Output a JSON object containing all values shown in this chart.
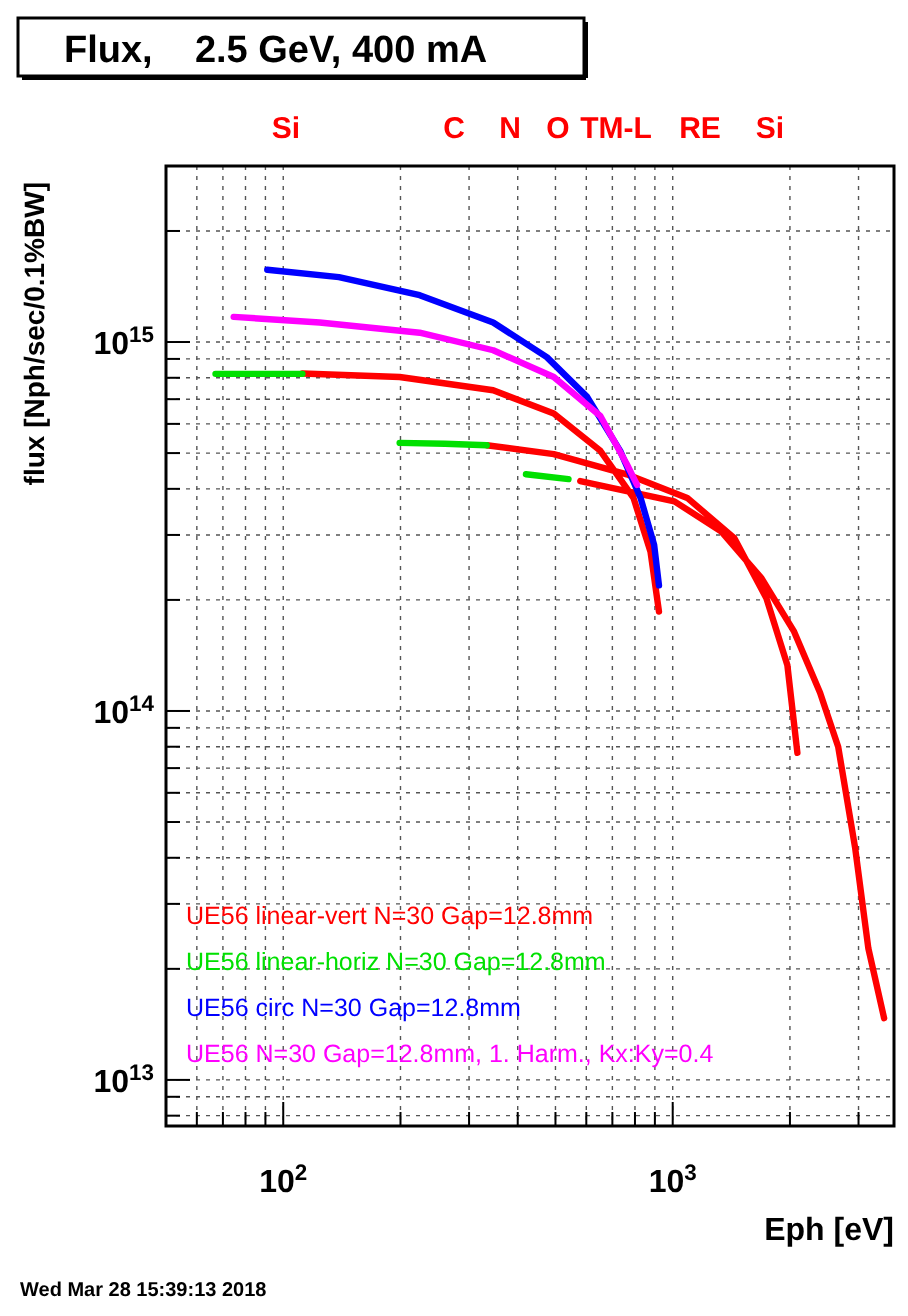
{
  "chart_data": {
    "type": "line",
    "title": "Flux,    2.5 GeV, 400 mA",
    "xlabel": "Eph [eV]",
    "ylabel": "flux [Nph/sec/0.1%BW]",
    "log": "xy",
    "xlim": [
      50,
      3700
    ],
    "ylim": [
      7500000000000.0,
      3000000000000000.0
    ],
    "xticks": [
      {
        "value": 100,
        "label": "10$^{2}$"
      },
      {
        "value": 1000,
        "label": "10$^{3}$"
      }
    ],
    "yticks": [
      {
        "value": 10000000000000.0,
        "label": "10$^{13}$"
      },
      {
        "value": 100000000000000.0,
        "label": "10$^{14}$"
      },
      {
        "value": 1000000000000000.0,
        "label": "10$^{15}$"
      }
    ],
    "grid": true,
    "legend": "bottom left",
    "marker": "none",
    "line_style": "solid",
    "annotations": [
      "Si",
      "C",
      "N",
      "O",
      "TM-L",
      "RE",
      "Si",
      "Wed Mar 28 15:39:13 2018"
    ],
    "series": [
      {
        "name": "UE56 linear-vert N=30 Gap=12.8mm",
        "color": "#ff0000",
        "x": [
          112,
          199,
          346,
          495,
          652,
          793,
          877,
          922,
          null,
          333,
          495,
          762,
          1090,
          1440,
          1740,
          1970,
          2090,
          null,
          579,
          1010,
          1330,
          1690,
          2050,
          2390,
          2660,
          2940,
          3180,
          3490
        ],
        "values": [
          822000000000000.0,
          804000000000000.0,
          740000000000000.0,
          640000000000000.0,
          507000000000000.0,
          378000000000000.0,
          270000000000000.0,
          186000000000000.0,
          null,
          525000000000000.0,
          497000000000000.0,
          438000000000000.0,
          378000000000000.0,
          294000000000000.0,
          202000000000000.0,
          133000000000000.0,
          77000000000000.0,
          null,
          420000000000000.0,
          370000000000000.0,
          307000000000000.0,
          229000000000000.0,
          164000000000000.0,
          112000000000000.0,
          80000000000000.0,
          42600000000000.0,
          22700000000000.0,
          14700000000000.0
        ]
      },
      {
        "name": "UE56 linear-horiz N=30 Gap=12.8mm",
        "color": "#00e000",
        "x": [
          67,
          90,
          112,
          null,
          199,
          260,
          333,
          null,
          420,
          540
        ],
        "values": [
          820000000000000.0,
          820000000000000.0,
          820000000000000.0,
          null,
          533000000000000.0,
          530000000000000.0,
          525000000000000.0,
          null,
          438000000000000.0,
          425000000000000.0
        ]
      },
      {
        "name": "UE56 circ N=30 Gap=12.8mm",
        "color": "#0000ff",
        "x": [
          91,
          139,
          224,
          346,
          475,
          603,
          733,
          827,
          896,
          922
        ],
        "values": [
          1570000000000000.0,
          1500000000000000.0,
          1340000000000000.0,
          1130000000000000.0,
          910000000000000.0,
          710000000000000.0,
          507000000000000.0,
          378000000000000.0,
          282000000000000.0,
          219000000000000.0
        ]
      },
      {
        "name": "UE56 N=30 Gap=12.8mm, 1. Harm., Kx:Ky=0.4",
        "color": "#ff00ff",
        "x": [
          74.6,
          124,
          224,
          346,
          495,
          652,
          762,
          810
        ],
        "values": [
          1170000000000000.0,
          1130000000000000.0,
          1060000000000000.0,
          950000000000000.0,
          804000000000000.0,
          630000000000000.0,
          467000000000000.0,
          410000000000000.0
        ]
      }
    ]
  }
}
